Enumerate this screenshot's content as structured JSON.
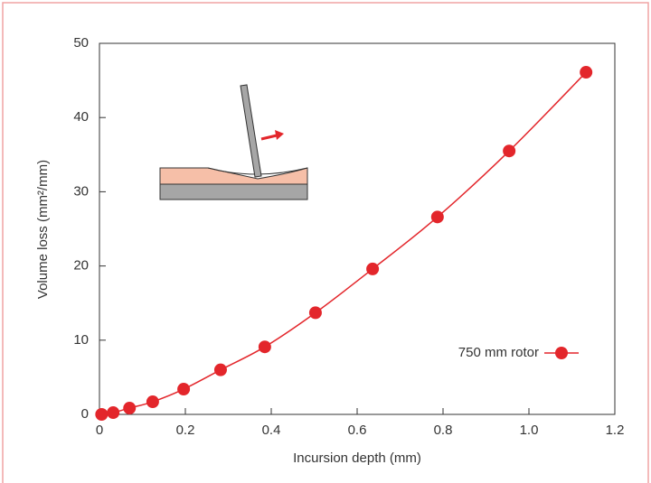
{
  "chart_data": {
    "type": "line",
    "x_label": "Incursion depth (mm)",
    "y_label": "Volume loss (mm²/mm)",
    "x": [
      0.005,
      0.032,
      0.07,
      0.124,
      0.196,
      0.282,
      0.385,
      0.503,
      0.636,
      0.787,
      0.954,
      1.133
    ],
    "series": [
      {
        "name": "750 mm rotor",
        "color": "#e3262b",
        "values": [
          0.0,
          0.24,
          0.85,
          1.7,
          3.4,
          6.0,
          9.1,
          13.7,
          19.6,
          26.6,
          35.5,
          46.1
        ]
      }
    ],
    "xlim": [
      0,
      1.2
    ],
    "xticks": [
      0,
      0.2,
      0.4,
      0.6,
      0.8,
      {
        "value": 1,
        "label": "1.0"
      },
      1.2
    ],
    "ylim": [
      0,
      50
    ],
    "yticks": [
      0,
      10,
      20,
      30,
      40,
      50
    ],
    "legend": "right",
    "grid": false
  }
}
